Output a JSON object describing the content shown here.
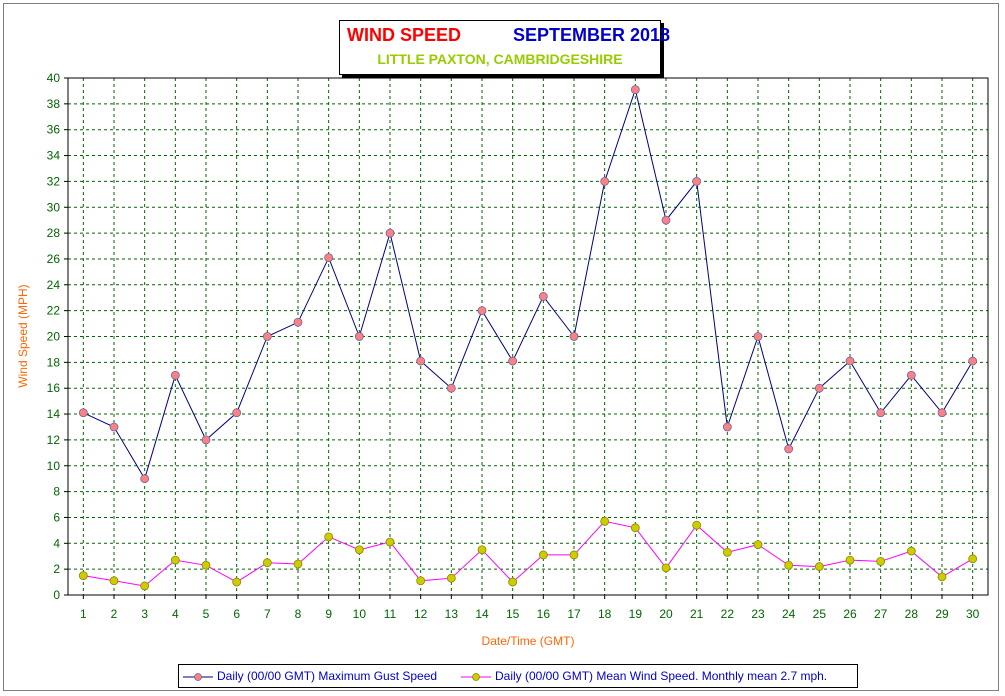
{
  "title": {
    "left": "WIND SPEED",
    "right": "SEPTEMBER 2018",
    "subtitle": "LITTLE PAXTON, CAMBRIDGESHIRE",
    "left_color": "#ff0000",
    "right_color": "#0000cc",
    "subtitle_color": "#99cc00"
  },
  "legend": {
    "gust_label": "Daily (00/00 GMT) Maximum Gust Speed",
    "mean_label": "Daily (00/00 GMT) Mean Wind Speed. Monthly mean 2.7 mph."
  },
  "chart_data": {
    "type": "line",
    "xlabel": "Date/Time (GMT)",
    "ylabel": "Wind Speed (MPH)",
    "ylim": [
      0,
      40
    ],
    "yticks": [
      0,
      2,
      4,
      6,
      8,
      10,
      12,
      14,
      16,
      18,
      20,
      22,
      24,
      26,
      28,
      30,
      32,
      34,
      36,
      38,
      40
    ],
    "x": [
      1,
      2,
      3,
      4,
      5,
      6,
      7,
      8,
      9,
      10,
      11,
      12,
      13,
      14,
      15,
      16,
      17,
      18,
      19,
      20,
      21,
      22,
      23,
      24,
      25,
      26,
      27,
      28,
      29,
      30
    ],
    "grid": true,
    "legend_position": "bottom",
    "series": [
      {
        "name": "Daily (00/00 GMT) Maximum Gust Speed",
        "line_color": "#000080",
        "marker_color": "#ff8080",
        "values": [
          14.1,
          13,
          9,
          17,
          12,
          14.1,
          20,
          21.1,
          26.1,
          20,
          28,
          18.1,
          16,
          22,
          18.1,
          23.1,
          20,
          32,
          39.1,
          29,
          32,
          13,
          20,
          11.3,
          16,
          18.1,
          14.1,
          17,
          14.1,
          18.1
        ]
      },
      {
        "name": "Daily (00/00 GMT) Mean Wind Speed. Monthly mean 2.7 mph.",
        "line_color": "#ff00ff",
        "marker_color": "#cccc00",
        "values": [
          1.5,
          1.1,
          0.7,
          2.7,
          2.3,
          1.0,
          2.5,
          2.4,
          4.5,
          3.5,
          4.1,
          1.1,
          1.3,
          3.5,
          1.0,
          3.1,
          3.1,
          5.7,
          5.2,
          2.1,
          5.4,
          3.3,
          3.9,
          2.3,
          2.2,
          2.7,
          2.6,
          3.4,
          1.4,
          2.8
        ]
      }
    ]
  }
}
